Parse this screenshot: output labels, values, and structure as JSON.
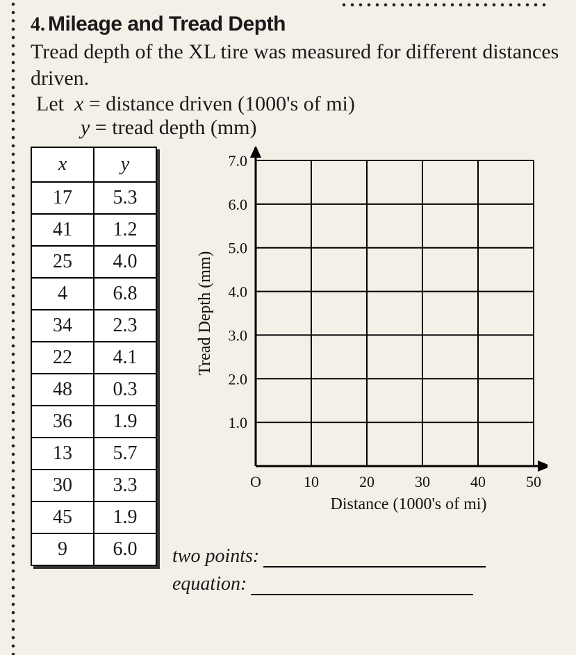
{
  "question": {
    "number": "4.",
    "title": "Mileage and Tread Depth",
    "intro": "Tread depth of the XL tire was measured for different distances driven.",
    "let_x": "distance driven (1000's of mi)",
    "let_y": "tread depth (mm)"
  },
  "table": {
    "col_x": "x",
    "col_y": "y",
    "rows": [
      {
        "x": "17",
        "y": "5.3"
      },
      {
        "x": "41",
        "y": "1.2"
      },
      {
        "x": "25",
        "y": "4.0"
      },
      {
        "x": "4",
        "y": "6.8"
      },
      {
        "x": "34",
        "y": "2.3"
      },
      {
        "x": "22",
        "y": "4.1"
      },
      {
        "x": "48",
        "y": "0.3"
      },
      {
        "x": "36",
        "y": "1.9"
      },
      {
        "x": "13",
        "y": "5.7"
      },
      {
        "x": "30",
        "y": "3.3"
      },
      {
        "x": "45",
        "y": "1.9"
      },
      {
        "x": "9",
        "y": "6.0"
      }
    ]
  },
  "chart": {
    "type": "scatter-grid",
    "x_label": "Distance (1000's of mi)",
    "y_label": "Tread Depth (mm)",
    "x_ticks": [
      "O",
      "10",
      "20",
      "30",
      "40",
      "50"
    ],
    "y_ticks": [
      "1.0",
      "2.0",
      "3.0",
      "4.0",
      "5.0",
      "6.0",
      "7.0"
    ],
    "xlim": [
      0,
      50
    ],
    "ylim": [
      0,
      7
    ],
    "grid_color": "#000000",
    "background_color": "#f4f0e8",
    "axis_fontsize": 24,
    "label_fontsize": 24,
    "tick_fontsize": 22,
    "line_width": 2
  },
  "answers": {
    "two_points_label": "two points:",
    "equation_label": "equation:"
  },
  "colors": {
    "page_bg": "#f4f0e8",
    "ink": "#1a1a1a",
    "border": "#000000"
  }
}
